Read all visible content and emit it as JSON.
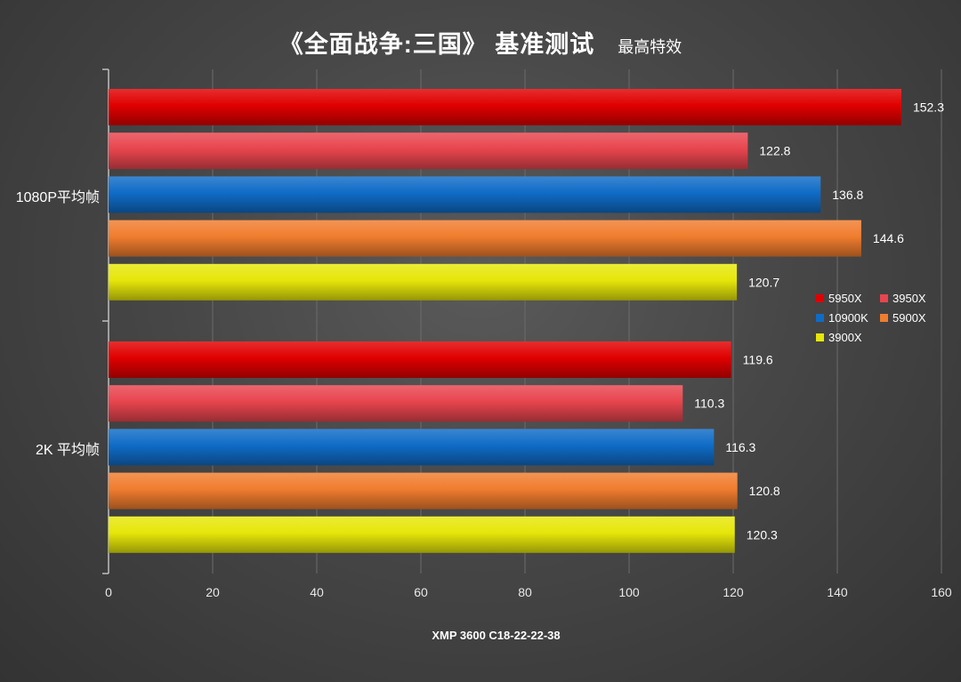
{
  "chart_data": {
    "type": "bar",
    "orientation": "horizontal",
    "title": "《全面战争:三国》 基准测试",
    "subtitle": "最高特效",
    "xlabel": "XMP 3600 C18-22-22-38",
    "xlim": [
      0,
      160
    ],
    "xticks": [
      0,
      20,
      40,
      60,
      80,
      100,
      120,
      140,
      160
    ],
    "grid": true,
    "legend_position": "right",
    "categories": [
      "1080P平均帧",
      "2K 平均帧"
    ],
    "series": [
      {
        "name": "5950X",
        "color": "#e00000",
        "values": [
          152.3,
          119.6
        ]
      },
      {
        "name": "3950X",
        "color": "#e8454e",
        "values": [
          122.8,
          110.3
        ]
      },
      {
        "name": "10900K",
        "color": "#0f6cc6",
        "values": [
          136.8,
          116.3
        ]
      },
      {
        "name": "5900X",
        "color": "#f07d2e",
        "values": [
          144.6,
          120.8
        ]
      },
      {
        "name": "3900X",
        "color": "#e6e60a",
        "values": [
          120.7,
          120.3
        ]
      }
    ]
  }
}
